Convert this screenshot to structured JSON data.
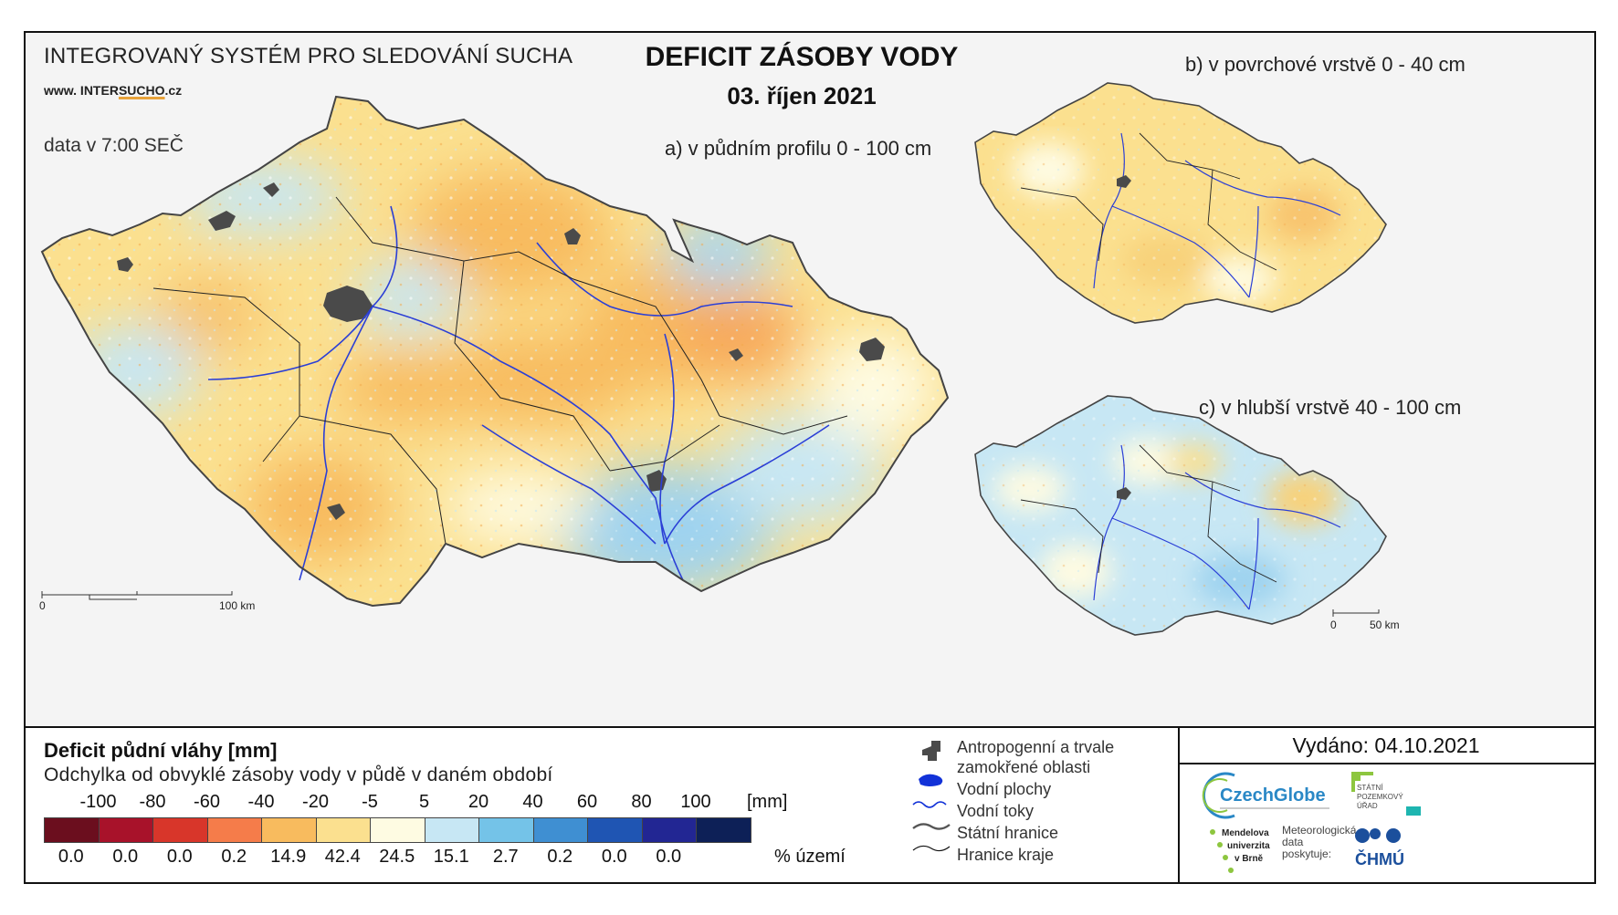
{
  "header": {
    "system_title": "INTEGROVANÝ SYSTÉM PRO SLEDOVÁNÍ SUCHA",
    "website_prefix": "www. INTER",
    "website_highlight": "SUCHO",
    "website_suffix": ".cz",
    "data_time": "data v 7:00 SEČ",
    "title": "DEFICIT ZÁSOBY VODY",
    "date": "03. říjen 2021"
  },
  "maps": {
    "a_label": "a) v půdním profilu 0 - 100 cm",
    "b_label": "b) v povrchové vrstvě 0 - 40 cm",
    "c_label": "c) v hlubší vrstvě 40 - 100 cm",
    "a_scale_zero": "0",
    "a_scale_end": "100 km",
    "c_scale_zero": "0",
    "c_scale_end": "50 km"
  },
  "legend": {
    "title": "Deficit půdní vláhy  [mm]",
    "subtitle": "Odchylka od obvyklé zásoby vody v půdě v daném období",
    "unit": "[mm]",
    "pct_unit": "% území",
    "ticks": [
      "-100",
      "-80",
      "-60",
      "-40",
      "-20",
      "-5",
      "5",
      "20",
      "40",
      "60",
      "80",
      "100"
    ],
    "classes": [
      {
        "color": "#6b0e1e",
        "pct": "0.0"
      },
      {
        "color": "#a8122a",
        "pct": "0.0"
      },
      {
        "color": "#d8362a",
        "pct": "0.0"
      },
      {
        "color": "#f57c4a",
        "pct": "0.2"
      },
      {
        "color": "#f8bb5e",
        "pct": "14.9"
      },
      {
        "color": "#fbe08f",
        "pct": "42.4"
      },
      {
        "color": "#fefbe2",
        "pct": "24.5"
      },
      {
        "color": "#c7e7f4",
        "pct": "15.1"
      },
      {
        "color": "#74c3e8",
        "pct": "2.7"
      },
      {
        "color": "#3f8fd2",
        "pct": "0.2"
      },
      {
        "color": "#1f55b3",
        "pct": "0.0"
      },
      {
        "color": "#222693",
        "pct": "0.0"
      },
      {
        "color": "#0d2057",
        "pct": ""
      }
    ]
  },
  "symbols": {
    "urban_line1": "Antropogenní a trvale",
    "urban_line2": "zamokřené oblasti",
    "water_bodies": "Vodní plochy",
    "rivers": "Vodní toky",
    "state_border": "Státní hranice",
    "region_border": "Hranice kraje"
  },
  "issue": {
    "issued": "Vydáno: 04.10.2021"
  },
  "logos": {
    "czechglobe": "CzechGlobe",
    "spu_line1": "STÁTNÍ",
    "spu_line2": "POZEMKOVÝ",
    "spu_line3": "ÚŘAD",
    "mendel_line1": "Mendelova",
    "mendel_line2": "univerzita",
    "mendel_line3": "v Brně",
    "meteo_line1": "Meteorologická",
    "meteo_line2": "data",
    "meteo_line3": "poskytuje:",
    "chmu": "ČHMÚ"
  }
}
